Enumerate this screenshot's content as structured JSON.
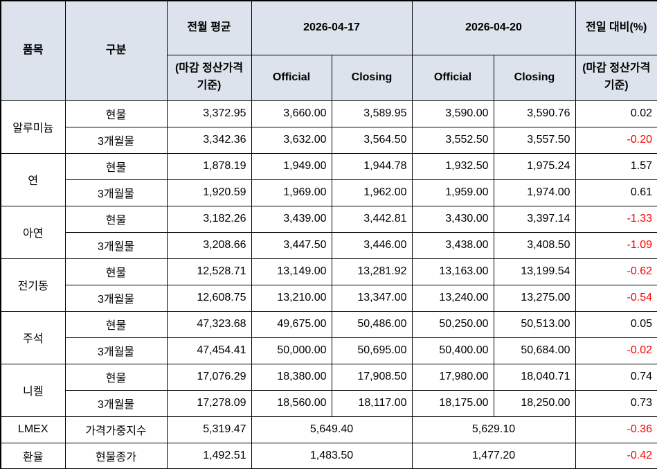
{
  "table": {
    "title": "LME metal prices table",
    "colors": {
      "header_bg": "#dce3ec",
      "negative": "#ff0000",
      "border": "#000000"
    },
    "header": {
      "item": "품목",
      "category": "구분",
      "prev_month_avg": "전월 평균",
      "prev_month_avg_sub": "(마감 정산가격 기준)",
      "date1": "2026-04-17",
      "date2": "2026-04-20",
      "official": "Official",
      "closing": "Closing",
      "day_change": "전일 대비(%)",
      "day_change_sub": "(마감 정산가격 기준)"
    },
    "groups": [
      {
        "item": "알루미늄",
        "rows": [
          {
            "category": "현물",
            "values": [
              "3,372.95",
              "3,660.00",
              "3,589.95",
              "3,590.00",
              "3,590.76"
            ],
            "change": "0.02"
          },
          {
            "category": "3개월물",
            "values": [
              "3,342.36",
              "3,632.00",
              "3,564.50",
              "3,552.50",
              "3,557.50"
            ],
            "change": "-0.20"
          }
        ]
      },
      {
        "item": "연",
        "rows": [
          {
            "category": "현물",
            "values": [
              "1,878.19",
              "1,949.00",
              "1,944.78",
              "1,932.50",
              "1,975.24"
            ],
            "change": "1.57"
          },
          {
            "category": "3개월물",
            "values": [
              "1,920.59",
              "1,969.00",
              "1,962.00",
              "1,959.00",
              "1,974.00"
            ],
            "change": "0.61"
          }
        ]
      },
      {
        "item": "아연",
        "rows": [
          {
            "category": "현물",
            "values": [
              "3,182.26",
              "3,439.00",
              "3,442.81",
              "3,430.00",
              "3,397.14"
            ],
            "change": "-1.33"
          },
          {
            "category": "3개월물",
            "values": [
              "3,208.66",
              "3,447.50",
              "3,446.00",
              "3,438.00",
              "3,408.50"
            ],
            "change": "-1.09"
          }
        ]
      },
      {
        "item": "전기동",
        "rows": [
          {
            "category": "현물",
            "values": [
              "12,528.71",
              "13,149.00",
              "13,281.92",
              "13,163.00",
              "13,199.54"
            ],
            "change": "-0.62"
          },
          {
            "category": "3개월물",
            "values": [
              "12,608.75",
              "13,210.00",
              "13,347.00",
              "13,240.00",
              "13,275.00"
            ],
            "change": "-0.54"
          }
        ]
      },
      {
        "item": "주석",
        "rows": [
          {
            "category": "현물",
            "values": [
              "47,323.68",
              "49,675.00",
              "50,486.00",
              "50,250.00",
              "50,513.00"
            ],
            "change": "0.05"
          },
          {
            "category": "3개월물",
            "values": [
              "47,454.41",
              "50,000.00",
              "50,695.00",
              "50,400.00",
              "50,684.00"
            ],
            "change": "-0.02"
          }
        ]
      },
      {
        "item": "니켈",
        "rows": [
          {
            "category": "현물",
            "values": [
              "17,076.29",
              "18,380.00",
              "17,908.50",
              "17,980.00",
              "18,040.71"
            ],
            "change": "0.74"
          },
          {
            "category": "3개월물",
            "values": [
              "17,278.09",
              "18,560.00",
              "18,117.00",
              "18,175.00",
              "18,250.00"
            ],
            "change": "0.73"
          }
        ]
      },
      {
        "item": "LMEX",
        "rows": [
          {
            "category": "가격가중지수",
            "merged": true,
            "values": [
              "5,319.47",
              "5,649.40",
              "5,629.10"
            ],
            "change": "-0.36"
          }
        ]
      },
      {
        "item": "환율",
        "rows": [
          {
            "category": "현물종가",
            "merged": true,
            "values": [
              "1,492.51",
              "1,483.50",
              "1,477.20"
            ],
            "change": "-0.42"
          }
        ]
      }
    ]
  }
}
